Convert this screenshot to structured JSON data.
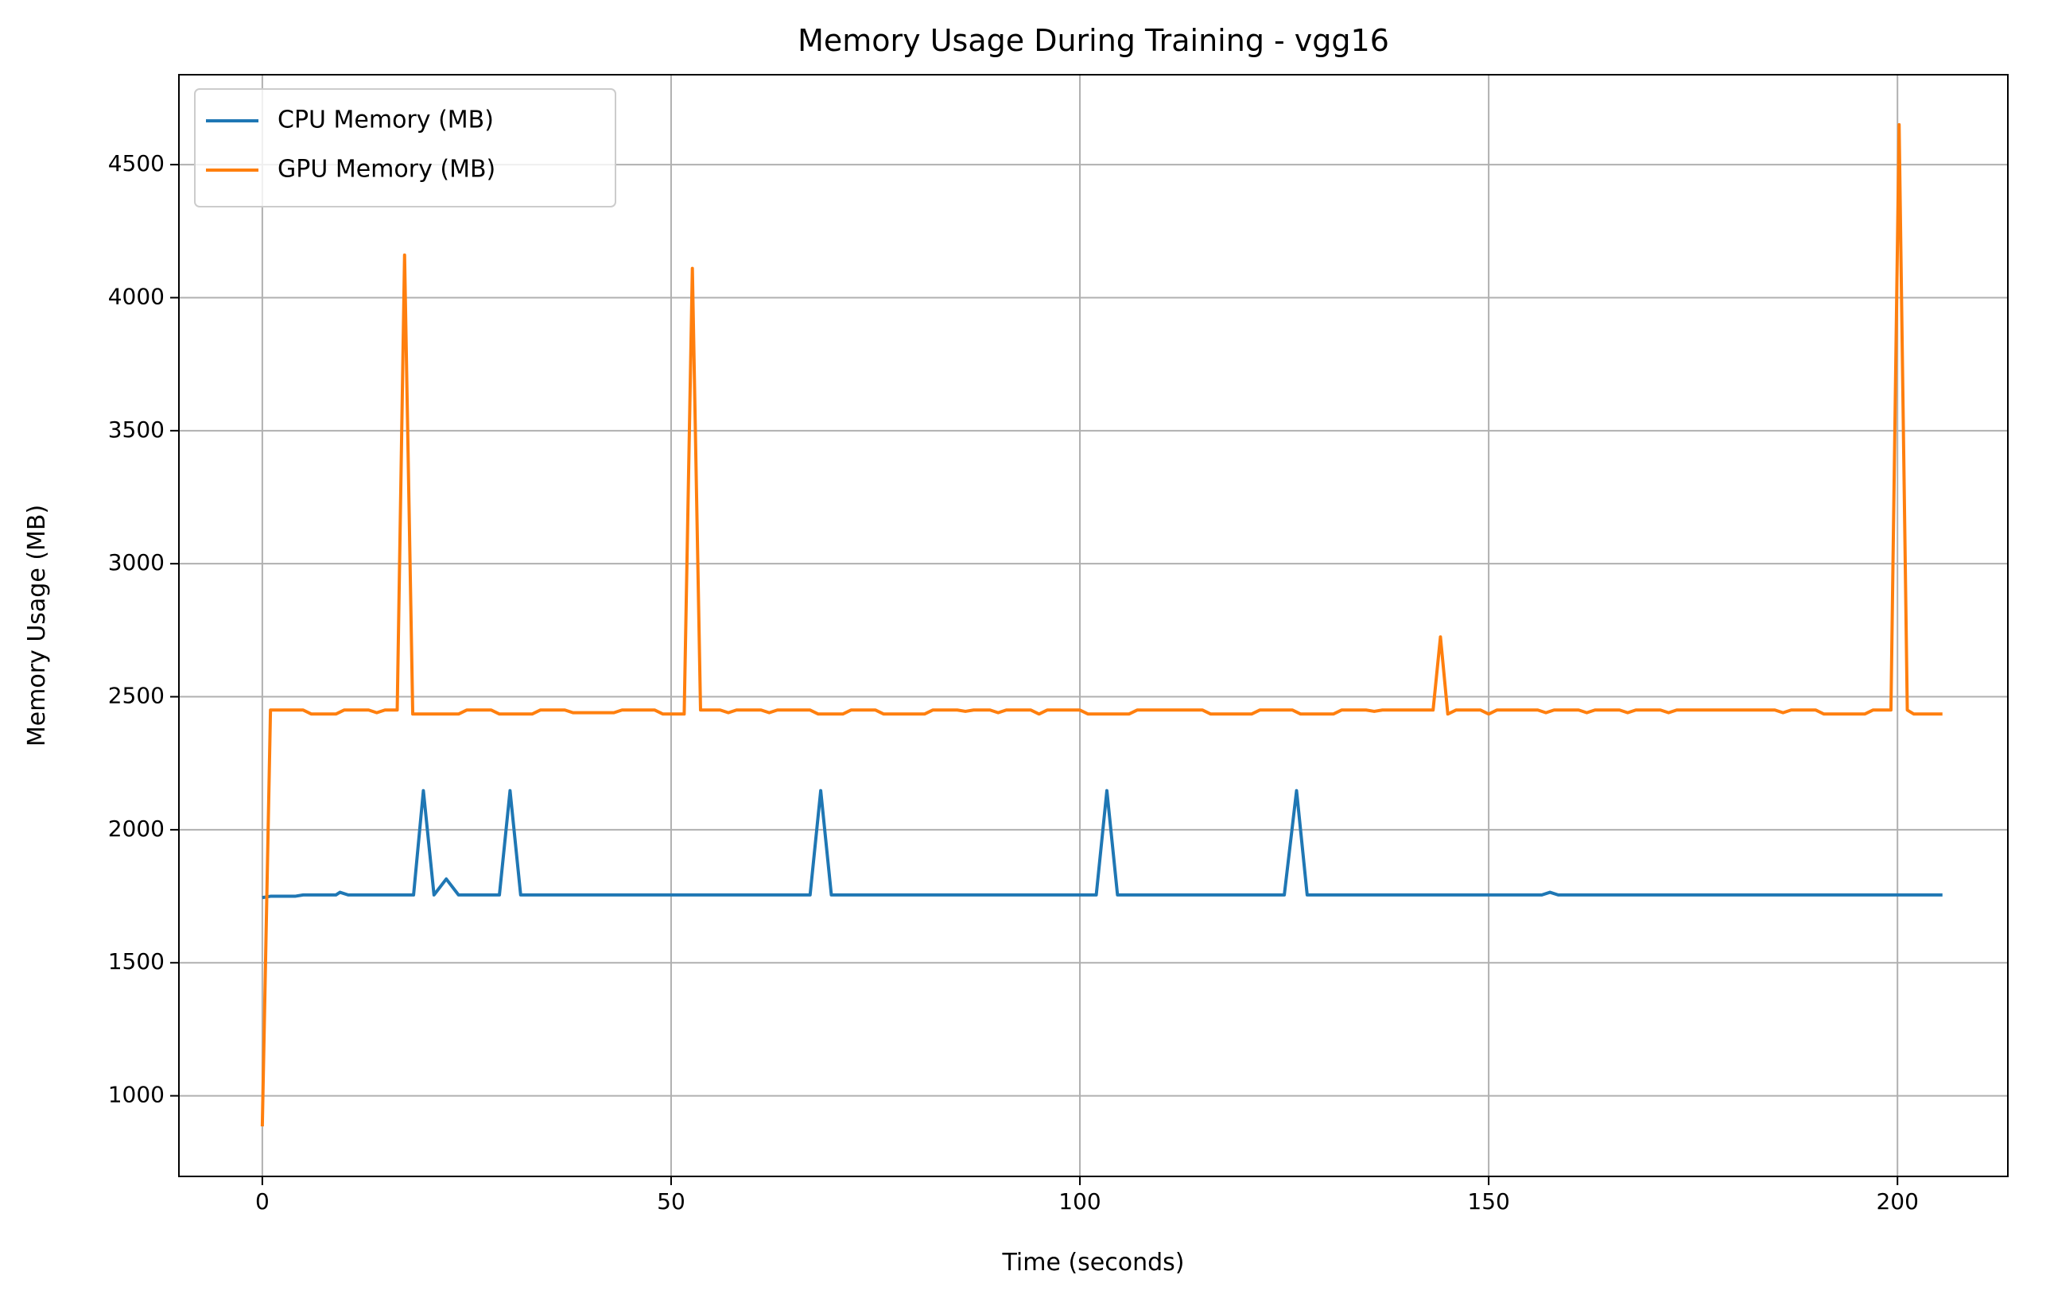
{
  "chart_data": {
    "type": "line",
    "title": "Memory Usage During Training - vgg16",
    "xlabel": "Time (seconds)",
    "ylabel": "Memory Usage (MB)",
    "xlim": [
      -10.2,
      213.5
    ],
    "ylim": [
      697,
      4838
    ],
    "xticks": [
      0,
      50,
      100,
      150,
      200
    ],
    "yticks": [
      1000,
      1500,
      2000,
      2500,
      3000,
      3500,
      4000,
      4500
    ],
    "grid": true,
    "legend": "upper left",
    "series": [
      {
        "name": "CPU Memory (MB)",
        "color": "#1f77b4",
        "x": [
          0,
          1,
          4,
          5,
          9,
          9.5,
          10.5,
          18.5,
          19.7,
          21,
          22.5,
          24,
          25,
          29,
          30.3,
          31.6,
          67,
          68.3,
          69.6,
          102,
          103.3,
          104.6,
          125,
          126.5,
          127.8,
          156.5,
          157.5,
          158.5,
          205.5
        ],
        "values": [
          1745,
          1750,
          1750,
          1755,
          1755,
          1765,
          1755,
          1755,
          2147,
          1755,
          1815,
          1755,
          1755,
          1755,
          2147,
          1755,
          1755,
          2147,
          1755,
          1755,
          2147,
          1755,
          1755,
          2147,
          1755,
          1755,
          1765,
          1755,
          1755
        ]
      },
      {
        "name": "GPU Memory (MB)",
        "color": "#ff7f0e",
        "x": [
          0,
          1,
          5,
          6,
          9,
          10,
          13,
          14,
          15,
          16.5,
          17.4,
          18.4,
          24,
          25,
          28,
          29,
          33,
          34,
          37,
          38,
          43,
          44,
          48,
          49,
          51.6,
          52.6,
          53.6,
          56,
          57,
          58,
          61,
          62,
          63,
          67,
          68,
          71,
          72,
          75,
          76,
          81,
          82,
          85,
          86,
          87,
          89,
          90,
          91,
          94,
          95,
          96,
          100,
          101,
          106,
          107,
          115,
          116,
          121,
          122,
          126,
          127,
          131,
          132,
          135,
          136,
          137,
          143.2,
          144.1,
          145,
          146,
          149,
          150,
          151,
          156,
          157,
          158,
          161,
          162,
          163,
          166,
          167,
          168,
          171,
          172,
          173,
          185,
          186,
          187,
          190,
          191,
          196,
          197,
          199.2,
          200.2,
          201.2,
          202,
          205.5
        ],
        "values": [
          885,
          2450,
          2450,
          2435,
          2435,
          2450,
          2450,
          2440,
          2450,
          2450,
          4160,
          2435,
          2435,
          2450,
          2450,
          2435,
          2435,
          2450,
          2450,
          2440,
          2440,
          2450,
          2450,
          2435,
          2435,
          4110,
          2450,
          2450,
          2440,
          2450,
          2450,
          2440,
          2450,
          2450,
          2435,
          2435,
          2450,
          2450,
          2435,
          2435,
          2450,
          2450,
          2445,
          2450,
          2450,
          2440,
          2450,
          2450,
          2435,
          2450,
          2450,
          2435,
          2435,
          2450,
          2450,
          2435,
          2435,
          2450,
          2450,
          2435,
          2435,
          2450,
          2450,
          2445,
          2450,
          2450,
          2725,
          2435,
          2450,
          2450,
          2435,
          2450,
          2450,
          2440,
          2450,
          2450,
          2440,
          2450,
          2450,
          2440,
          2450,
          2450,
          2440,
          2450,
          2450,
          2440,
          2450,
          2450,
          2435,
          2435,
          2450,
          2450,
          4650,
          2450,
          2435,
          2435
        ]
      }
    ]
  }
}
